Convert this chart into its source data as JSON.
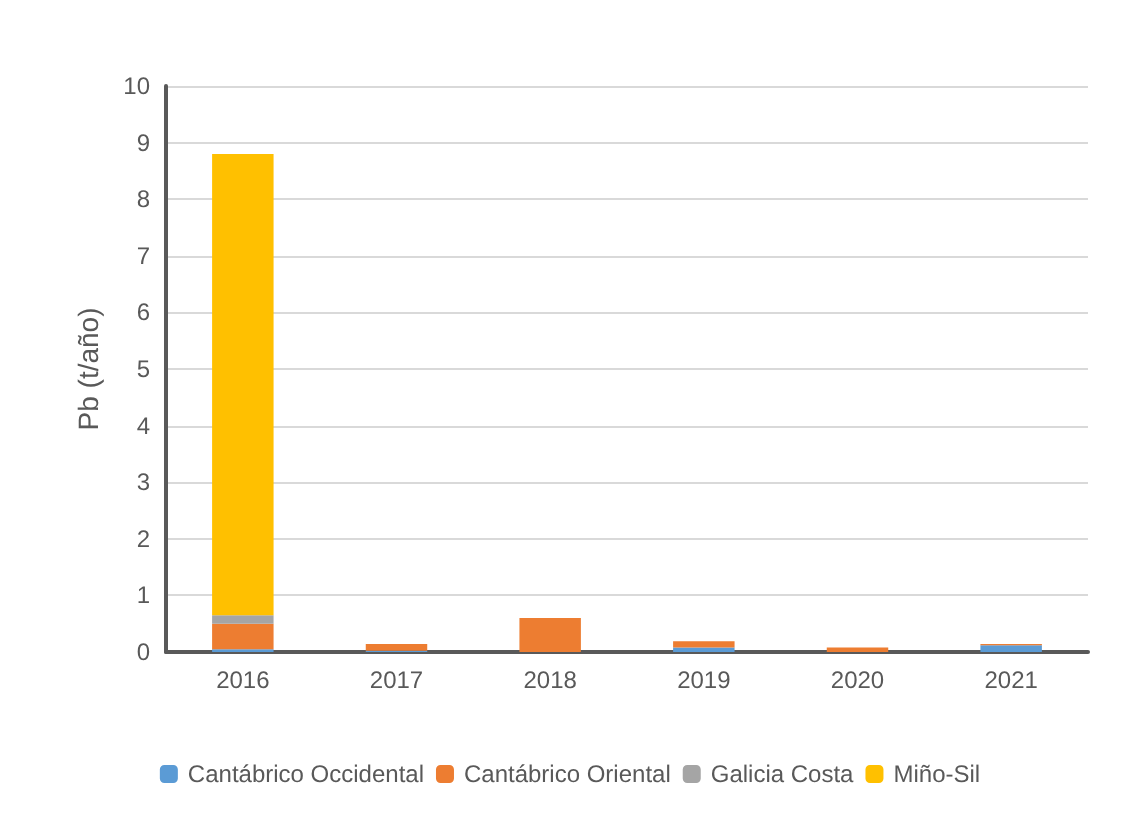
{
  "chart_data": {
    "type": "bar",
    "stacked": true,
    "ylabel": "Pb (t/año)",
    "categories": [
      "2016",
      "2017",
      "2018",
      "2019",
      "2020",
      "2021"
    ],
    "series": [
      {
        "name": "Cantábrico Occidental",
        "color": "#5b9bd5",
        "values": [
          0.05,
          0.02,
          0,
          0.08,
          null,
          0.12
        ]
      },
      {
        "name": "Cantábrico Oriental",
        "color": "#ed7d31",
        "values": [
          0.45,
          0.12,
          0.6,
          0.11,
          0.08,
          0.02
        ]
      },
      {
        "name": "Galicia Costa",
        "color": "#a5a5a5",
        "values": [
          0.15,
          0,
          0,
          null,
          0,
          0
        ]
      },
      {
        "name": "Miño-Sil",
        "color": "#ffc000",
        "values": [
          8.15,
          0,
          0,
          0,
          0,
          0
        ]
      }
    ],
    "ylim": [
      0,
      10
    ],
    "yticks": [
      0,
      1,
      2,
      3,
      4,
      5,
      6,
      7,
      8,
      9,
      10
    ],
    "grid": "y",
    "legend": "bottom"
  }
}
